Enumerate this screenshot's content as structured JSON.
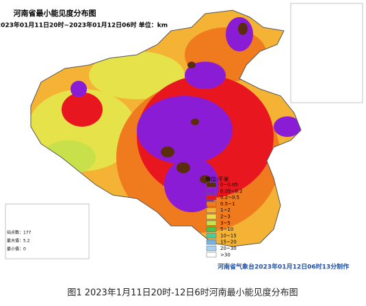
{
  "header": {
    "title": "河南省最小能见度分布图",
    "subtitle": "2023年01月11日20时~2023年01月12日06时 单位：km"
  },
  "legend": {
    "title": "单位:千米",
    "items": [
      {
        "label": "0~0.05",
        "color": "#5a2d0c"
      },
      {
        "label": "0.05~0.2",
        "color": "#8b1cd6"
      },
      {
        "label": "0.2~0.5",
        "color": "#e8171f"
      },
      {
        "label": "0.5~1",
        "color": "#f07a1e"
      },
      {
        "label": "1~2",
        "color": "#f5b335"
      },
      {
        "label": "2~3",
        "color": "#e6e24a"
      },
      {
        "label": "3~5",
        "color": "#c8e04a"
      },
      {
        "label": "5~10",
        "color": "#4cc24a"
      },
      {
        "label": "10~15",
        "color": "#50c8a0"
      },
      {
        "label": "15~20",
        "color": "#7ab0e0"
      },
      {
        "label": "20~30",
        "color": "#a8d0f0"
      },
      {
        "label": ">30",
        "color": "#ffffff"
      }
    ]
  },
  "stats": [
    "站点数：177",
    "最大值：5.2",
    "最小值：0"
  ],
  "footer": "河南省气象台2023年01月12日06时13分制作",
  "caption": "图1  2023年1月11日20时-12日6时河南最小能见度分布图"
}
